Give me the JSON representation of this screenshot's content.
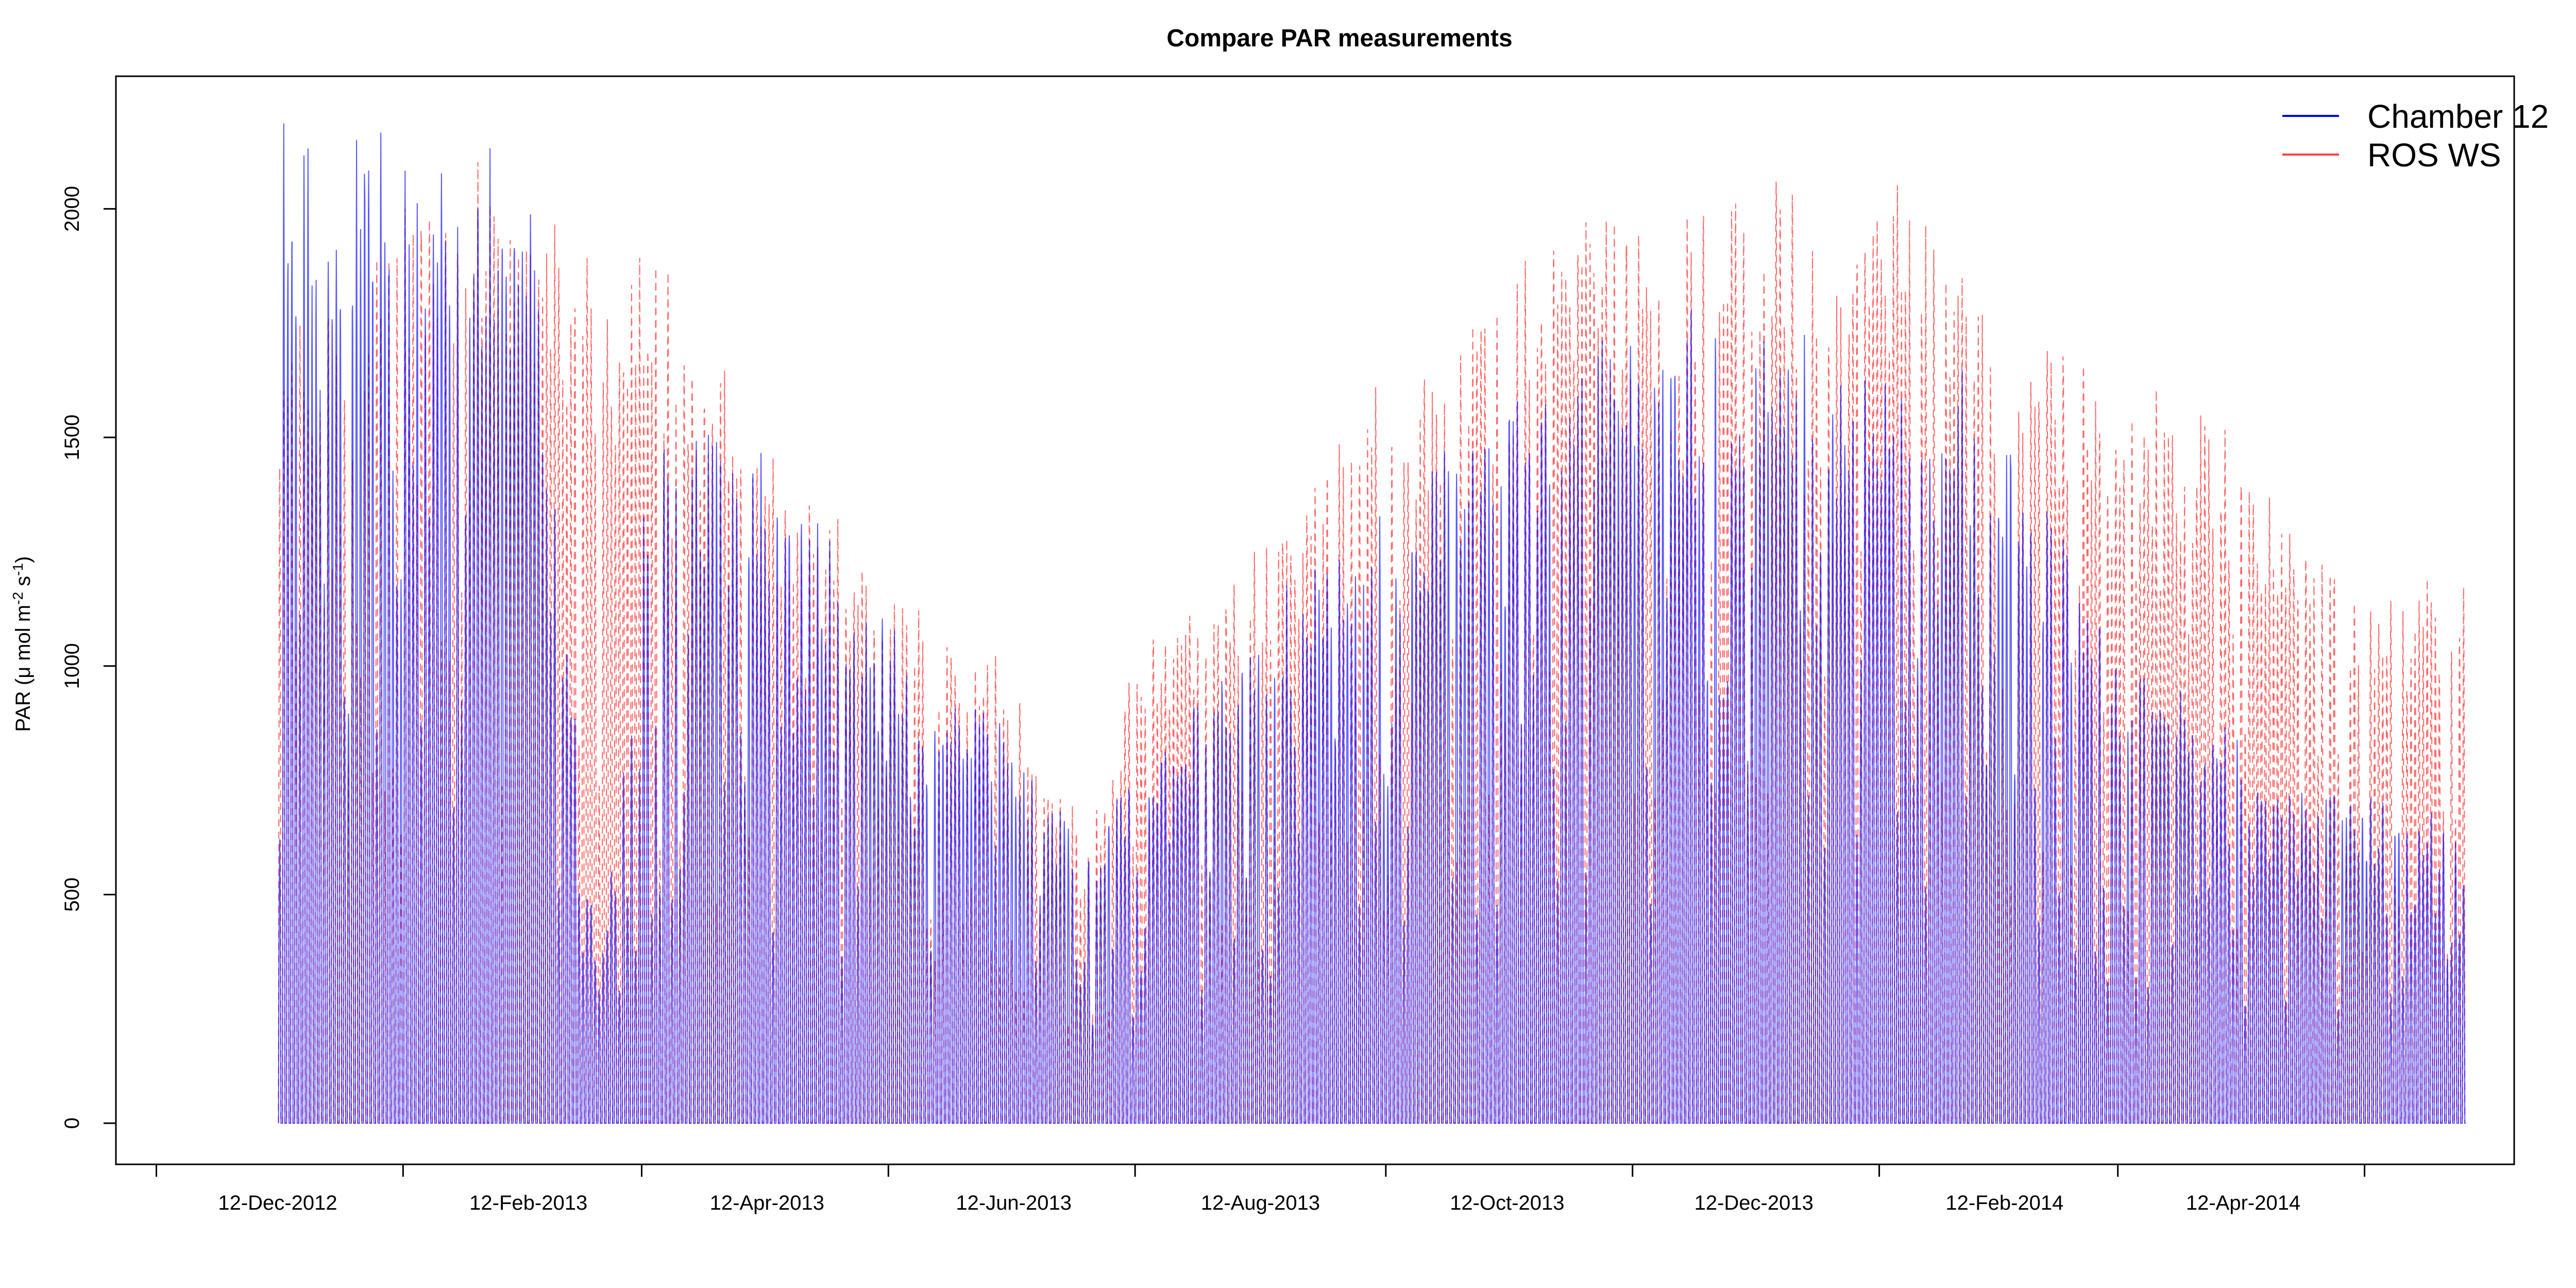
{
  "chart_data": {
    "type": "line",
    "title": "Compare PAR measurements",
    "ylabel": "PAR (μ mol m⁻² s⁻¹)",
    "ylabel_parts": {
      "pre": "PAR (",
      "mu": "μ",
      "mid": " mol m",
      "exp1": "-2",
      "mid2": " s",
      "exp2": "-1",
      "post": ")"
    },
    "xlabel": "",
    "ylim": [
      -90,
      2290
    ],
    "xlim": [
      "2012-11-02",
      "2014-06-18"
    ],
    "yticks": [
      0,
      500,
      1000,
      1500,
      2000
    ],
    "xtick_labels": [
      "12-Dec-2012",
      "12-Feb-2013",
      "12-Apr-2013",
      "12-Jun-2013",
      "12-Aug-2013",
      "12-Oct-2013",
      "12-Dec-2013",
      "12-Feb-2014",
      "12-Apr-2014"
    ],
    "xtick_dates": [
      "2012-12-12",
      "2013-02-12",
      "2013-04-12",
      "2013-06-12",
      "2013-08-12",
      "2013-10-12",
      "2013-12-12",
      "2014-02-12",
      "2014-04-12"
    ],
    "xtick_marks": [
      "2012-11-12",
      "2013-01-12",
      "2013-03-12",
      "2013-05-12",
      "2013-07-12",
      "2013-09-12",
      "2013-11-12",
      "2014-01-12",
      "2014-03-12",
      "2014-05-12"
    ],
    "legend_position": "top-right",
    "grid": false,
    "series": [
      {
        "name": "Chamber 12",
        "color": "#0000ff",
        "style": "solid",
        "daily_peak": [
          {
            "date": "2012-12-12",
            "value": 2100
          },
          {
            "date": "2013-01-05",
            "value": 2180
          },
          {
            "date": "2013-02-12",
            "value": 2030
          },
          {
            "date": "2013-03-01",
            "value": 300
          },
          {
            "date": "2013-03-15",
            "value": 1600
          },
          {
            "date": "2013-04-12",
            "value": 1400
          },
          {
            "date": "2013-05-12",
            "value": 1100
          },
          {
            "date": "2013-06-12",
            "value": 820
          },
          {
            "date": "2013-06-30",
            "value": 580
          },
          {
            "date": "2013-07-12",
            "value": 800
          },
          {
            "date": "2013-08-12",
            "value": 1100
          },
          {
            "date": "2013-09-12",
            "value": 1350
          },
          {
            "date": "2013-10-12",
            "value": 1600
          },
          {
            "date": "2013-11-12",
            "value": 1700
          },
          {
            "date": "2013-12-12",
            "value": 1750
          },
          {
            "date": "2014-01-12",
            "value": 1650
          },
          {
            "date": "2014-02-12",
            "value": 1550
          },
          {
            "date": "2014-03-12",
            "value": 1000
          },
          {
            "date": "2014-04-12",
            "value": 850
          },
          {
            "date": "2014-05-12",
            "value": 700
          },
          {
            "date": "2014-06-05",
            "value": 650
          }
        ]
      },
      {
        "name": "ROS WS",
        "color": "#ff0000",
        "style": "dashed",
        "daily_peak": [
          {
            "date": "2012-12-12",
            "value": 1700
          },
          {
            "date": "2013-01-12",
            "value": 2050
          },
          {
            "date": "2013-02-12",
            "value": 2000
          },
          {
            "date": "2013-03-01",
            "value": 1800
          },
          {
            "date": "2013-03-15",
            "value": 1850
          },
          {
            "date": "2013-04-12",
            "value": 1500
          },
          {
            "date": "2013-05-12",
            "value": 1150
          },
          {
            "date": "2013-06-12",
            "value": 980
          },
          {
            "date": "2013-06-30",
            "value": 600
          },
          {
            "date": "2013-07-12",
            "value": 1050
          },
          {
            "date": "2013-08-12",
            "value": 1250
          },
          {
            "date": "2013-09-12",
            "value": 1600
          },
          {
            "date": "2013-10-12",
            "value": 1800
          },
          {
            "date": "2013-11-12",
            "value": 2030
          },
          {
            "date": "2013-12-12",
            "value": 2060
          },
          {
            "date": "2014-01-12",
            "value": 2000
          },
          {
            "date": "2014-02-12",
            "value": 1800
          },
          {
            "date": "2014-03-12",
            "value": 1650
          },
          {
            "date": "2014-04-12",
            "value": 1420
          },
          {
            "date": "2014-05-12",
            "value": 1150
          },
          {
            "date": "2014-06-05",
            "value": 1180
          }
        ]
      }
    ],
    "data_start": "2012-12-12",
    "data_end": "2014-06-05"
  }
}
